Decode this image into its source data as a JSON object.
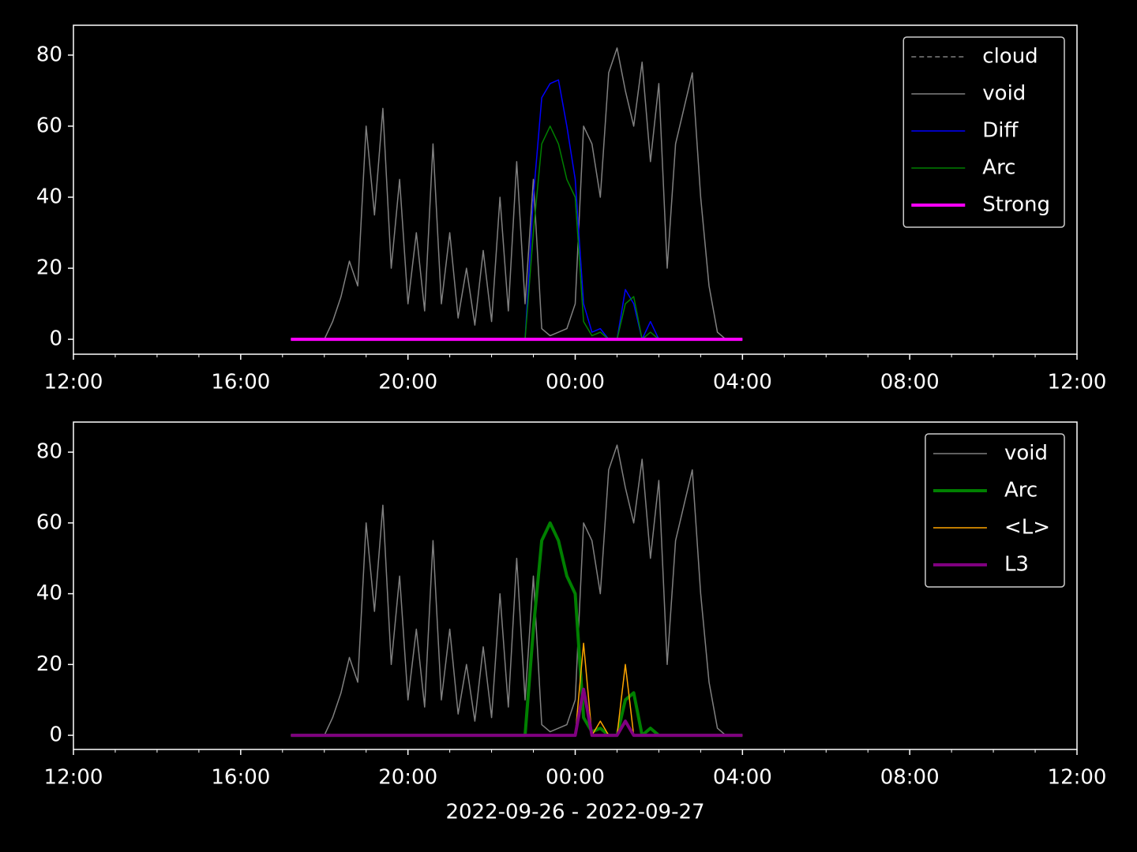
{
  "chart_data": [
    {
      "type": "line",
      "x": [
        17.2,
        17.4,
        17.6,
        17.8,
        18.0,
        18.2,
        18.4,
        18.6,
        18.8,
        19.0,
        19.2,
        19.4,
        19.6,
        19.8,
        20.0,
        20.2,
        20.4,
        20.6,
        20.8,
        21.0,
        21.2,
        21.4,
        21.6,
        21.8,
        22.0,
        22.2,
        22.4,
        22.6,
        22.8,
        23.0,
        23.2,
        23.4,
        23.6,
        23.8,
        24.0,
        24.2,
        24.4,
        24.6,
        24.8,
        25.0,
        25.2,
        25.4,
        25.6,
        25.8,
        26.0,
        26.2,
        26.4,
        26.6,
        26.8,
        27.0,
        27.2,
        27.4,
        27.6,
        27.8,
        28.0
      ],
      "series": [
        {
          "name": "cloud",
          "color": "#808080",
          "dashed": true,
          "linewidth": 1.5,
          "values": [
            0,
            0,
            0,
            0,
            0,
            0,
            0,
            0,
            0,
            0,
            0,
            0,
            0,
            0,
            0,
            0,
            0,
            0,
            0,
            0,
            0,
            0,
            0,
            0,
            0,
            0,
            0,
            0,
            0,
            0,
            0,
            0,
            0,
            0,
            0,
            0,
            0,
            0,
            0,
            0,
            0,
            0,
            0,
            0,
            0,
            0,
            0,
            0,
            0,
            0,
            0,
            0,
            0,
            0,
            0
          ]
        },
        {
          "name": "void",
          "color": "#808080",
          "dashed": false,
          "linewidth": 1.5,
          "values": [
            0,
            0,
            0,
            0,
            0,
            5,
            12,
            22,
            15,
            60,
            35,
            65,
            20,
            45,
            10,
            30,
            8,
            55,
            10,
            30,
            6,
            20,
            4,
            25,
            5,
            40,
            8,
            50,
            10,
            45,
            3,
            1,
            2,
            3,
            10,
            60,
            55,
            40,
            75,
            82,
            70,
            60,
            78,
            50,
            72,
            20,
            55,
            65,
            75,
            40,
            15,
            2,
            0,
            0,
            0
          ]
        },
        {
          "name": "Diff",
          "color": "#0000ff",
          "dashed": false,
          "linewidth": 1.5,
          "values": [
            0,
            0,
            0,
            0,
            0,
            0,
            0,
            0,
            0,
            0,
            0,
            0,
            0,
            0,
            0,
            0,
            0,
            0,
            0,
            0,
            0,
            0,
            0,
            0,
            0,
            0,
            0,
            0,
            0,
            40,
            68,
            72,
            73,
            60,
            45,
            10,
            2,
            3,
            0,
            0,
            14,
            10,
            0,
            5,
            0,
            0,
            0,
            0,
            0,
            0,
            0,
            0,
            0,
            0,
            0
          ]
        },
        {
          "name": "Arc",
          "color": "#008000",
          "dashed": false,
          "linewidth": 1.5,
          "values": [
            0,
            0,
            0,
            0,
            0,
            0,
            0,
            0,
            0,
            0,
            0,
            0,
            0,
            0,
            0,
            0,
            0,
            0,
            0,
            0,
            0,
            0,
            0,
            0,
            0,
            0,
            0,
            0,
            0,
            30,
            55,
            60,
            55,
            45,
            40,
            5,
            1,
            2,
            0,
            0,
            10,
            12,
            0,
            2,
            0,
            0,
            0,
            0,
            0,
            0,
            0,
            0,
            0,
            0,
            0
          ]
        },
        {
          "name": "Strong",
          "color": "#ff00ff",
          "dashed": false,
          "linewidth": 4,
          "values": [
            0,
            0,
            0,
            0,
            0,
            0,
            0,
            0,
            0,
            0,
            0,
            0,
            0,
            0,
            0,
            0,
            0,
            0,
            0,
            0,
            0,
            0,
            0,
            0,
            0,
            0,
            0,
            0,
            0,
            0,
            0,
            0,
            0,
            0,
            0,
            0,
            0,
            0,
            0,
            0,
            0,
            0,
            0,
            0,
            0,
            0,
            0,
            0,
            0,
            0,
            0,
            0,
            0,
            0,
            0
          ]
        }
      ],
      "xlim": [
        12,
        36
      ],
      "xticks": [
        {
          "value": 12,
          "label": "12:00"
        },
        {
          "value": 16,
          "label": "16:00"
        },
        {
          "value": 20,
          "label": "20:00"
        },
        {
          "value": 24,
          "label": "00:00"
        },
        {
          "value": 28,
          "label": "04:00"
        },
        {
          "value": 32,
          "label": "08:00"
        },
        {
          "value": 36,
          "label": "12:00"
        }
      ],
      "xminorticks": [
        13,
        14,
        15,
        17,
        18,
        19,
        21,
        22,
        23,
        25,
        26,
        27,
        29,
        30,
        31,
        33,
        34,
        35
      ],
      "ylim": [
        -4.2,
        88.4
      ],
      "yticks": [
        0,
        20,
        40,
        60,
        80
      ],
      "legend": "upper right"
    },
    {
      "type": "line",
      "x": [
        17.2,
        17.4,
        17.6,
        17.8,
        18.0,
        18.2,
        18.4,
        18.6,
        18.8,
        19.0,
        19.2,
        19.4,
        19.6,
        19.8,
        20.0,
        20.2,
        20.4,
        20.6,
        20.8,
        21.0,
        21.2,
        21.4,
        21.6,
        21.8,
        22.0,
        22.2,
        22.4,
        22.6,
        22.8,
        23.0,
        23.2,
        23.4,
        23.6,
        23.8,
        24.0,
        24.2,
        24.4,
        24.6,
        24.8,
        25.0,
        25.2,
        25.4,
        25.6,
        25.8,
        26.0,
        26.2,
        26.4,
        26.6,
        26.8,
        27.0,
        27.2,
        27.4,
        27.6,
        27.8,
        28.0
      ],
      "series": [
        {
          "name": "void",
          "color": "#808080",
          "dashed": false,
          "linewidth": 1.5,
          "values": [
            0,
            0,
            0,
            0,
            0,
            5,
            12,
            22,
            15,
            60,
            35,
            65,
            20,
            45,
            10,
            30,
            8,
            55,
            10,
            30,
            6,
            20,
            4,
            25,
            5,
            40,
            8,
            50,
            10,
            45,
            3,
            1,
            2,
            3,
            10,
            60,
            55,
            40,
            75,
            82,
            70,
            60,
            78,
            50,
            72,
            20,
            55,
            65,
            75,
            40,
            15,
            2,
            0,
            0,
            0
          ]
        },
        {
          "name": "Arc",
          "color": "#008000",
          "dashed": false,
          "linewidth": 4,
          "values": [
            0,
            0,
            0,
            0,
            0,
            0,
            0,
            0,
            0,
            0,
            0,
            0,
            0,
            0,
            0,
            0,
            0,
            0,
            0,
            0,
            0,
            0,
            0,
            0,
            0,
            0,
            0,
            0,
            0,
            30,
            55,
            60,
            55,
            45,
            40,
            5,
            1,
            2,
            0,
            0,
            10,
            12,
            0,
            2,
            0,
            0,
            0,
            0,
            0,
            0,
            0,
            0,
            0,
            0,
            0
          ]
        },
        {
          "name": "<L>",
          "color": "#ffa500",
          "dashed": false,
          "linewidth": 1.5,
          "values": [
            0,
            0,
            0,
            0,
            0,
            0,
            0,
            0,
            0,
            0,
            0,
            0,
            0,
            0,
            0,
            0,
            0,
            0,
            0,
            0,
            0,
            0,
            0,
            0,
            0,
            0,
            0,
            0,
            0,
            0,
            0,
            0,
            0,
            0,
            0,
            26,
            0,
            4,
            0,
            0,
            20,
            0,
            0,
            0,
            0,
            0,
            0,
            0,
            0,
            0,
            0,
            0,
            0,
            0,
            0
          ]
        },
        {
          "name": "L3",
          "color": "#800080",
          "dashed": false,
          "linewidth": 4,
          "values": [
            0,
            0,
            0,
            0,
            0,
            0,
            0,
            0,
            0,
            0,
            0,
            0,
            0,
            0,
            0,
            0,
            0,
            0,
            0,
            0,
            0,
            0,
            0,
            0,
            0,
            0,
            0,
            0,
            0,
            0,
            0,
            0,
            0,
            0,
            0,
            13,
            0,
            0,
            0,
            0,
            4,
            0,
            0,
            0,
            0,
            0,
            0,
            0,
            0,
            0,
            0,
            0,
            0,
            0,
            0
          ]
        }
      ],
      "xlim": [
        12,
        36
      ],
      "xticks": [
        {
          "value": 12,
          "label": "12:00"
        },
        {
          "value": 16,
          "label": "16:00"
        },
        {
          "value": 20,
          "label": "20:00"
        },
        {
          "value": 24,
          "label": "00:00"
        },
        {
          "value": 28,
          "label": "04:00"
        },
        {
          "value": 32,
          "label": "08:00"
        },
        {
          "value": 36,
          "label": "12:00"
        }
      ],
      "xminorticks": [
        13,
        14,
        15,
        17,
        18,
        19,
        21,
        22,
        23,
        25,
        26,
        27,
        29,
        30,
        31,
        33,
        34,
        35
      ],
      "ylim": [
        -4.0,
        88.5
      ],
      "yticks": [
        0,
        20,
        40,
        60,
        80
      ],
      "xlabel": "2022-09-26 - 2022-09-27",
      "legend": "upper right"
    }
  ]
}
